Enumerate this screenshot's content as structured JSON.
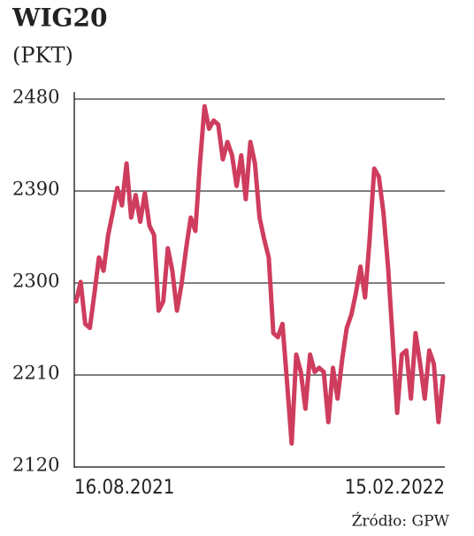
{
  "chart_data": {
    "type": "line",
    "title": "WIG20",
    "subtitle": "(PKT)",
    "source": "Źródło: GPW",
    "color": "#cf3d5e",
    "categories": [
      "16.08.2021",
      null,
      null,
      null,
      null,
      null,
      null,
      null,
      null,
      null,
      null,
      null,
      null,
      null,
      null,
      null,
      null,
      null,
      null,
      null,
      null,
      null,
      null,
      null,
      null,
      null,
      null,
      null,
      null,
      null,
      null,
      null,
      null,
      null,
      null,
      null,
      null,
      null,
      null,
      null,
      null,
      null,
      null,
      null,
      null,
      null,
      null,
      null,
      null,
      null,
      null,
      null,
      null,
      null,
      null,
      null,
      null,
      null,
      null,
      null,
      null,
      null,
      null,
      null,
      null,
      null,
      null,
      null,
      null,
      null,
      null,
      null,
      null,
      null,
      null,
      null,
      null,
      null,
      null,
      null,
      "15.02.2022"
    ],
    "values": [
      2282,
      2301,
      2260,
      2256,
      2290,
      2325,
      2312,
      2347,
      2369,
      2393,
      2376,
      2417,
      2364,
      2386,
      2360,
      2388,
      2356,
      2347,
      2273,
      2282,
      2334,
      2312,
      2273,
      2299,
      2334,
      2364,
      2351,
      2417,
      2473,
      2451,
      2459,
      2455,
      2421,
      2438,
      2425,
      2395,
      2425,
      2382,
      2438,
      2417,
      2364,
      2343,
      2325,
      2251,
      2247,
      2260,
      2203,
      2143,
      2230,
      2213,
      2177,
      2230,
      2213,
      2217,
      2213,
      2164,
      2217,
      2187,
      2225,
      2256,
      2269,
      2290,
      2316,
      2286,
      2343,
      2412,
      2404,
      2369,
      2316,
      2247,
      2173,
      2230,
      2234,
      2187,
      2251,
      2221,
      2187,
      2234,
      2221,
      2164,
      2208
    ],
    "ylim": [
      2120,
      2480
    ],
    "yticks": [
      2120,
      2210,
      2300,
      2390,
      2480
    ],
    "grid": true
  }
}
